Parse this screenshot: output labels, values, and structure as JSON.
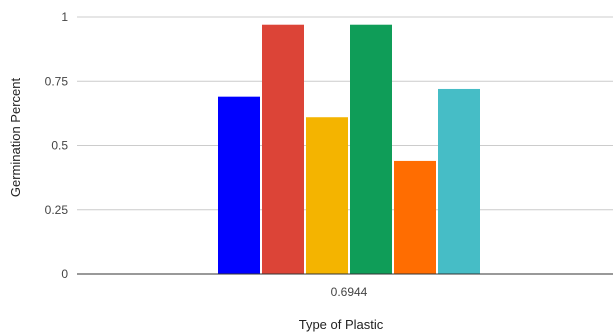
{
  "chart_data": {
    "type": "bar",
    "categories": [
      "0.6944"
    ],
    "series": [
      {
        "color": "#0000ff",
        "values": [
          0.69
        ]
      },
      {
        "color": "#dc4437",
        "values": [
          0.97
        ]
      },
      {
        "color": "#f4b400",
        "values": [
          0.61
        ]
      },
      {
        "color": "#0f9d58",
        "values": [
          0.97
        ]
      },
      {
        "color": "#ff6d01",
        "values": [
          0.44
        ]
      },
      {
        "color": "#46bdc6",
        "values": [
          0.72
        ]
      }
    ],
    "xlabel": "Type of Plastic",
    "ylabel": "Germination Percent",
    "ylim": [
      0,
      1
    ],
    "yticks": [
      0,
      0.25,
      0.5,
      0.75,
      1
    ],
    "ytick_labels": [
      "0",
      "0.25",
      "0.5",
      "0.75",
      "1"
    ],
    "grid": true,
    "legend": "none"
  }
}
